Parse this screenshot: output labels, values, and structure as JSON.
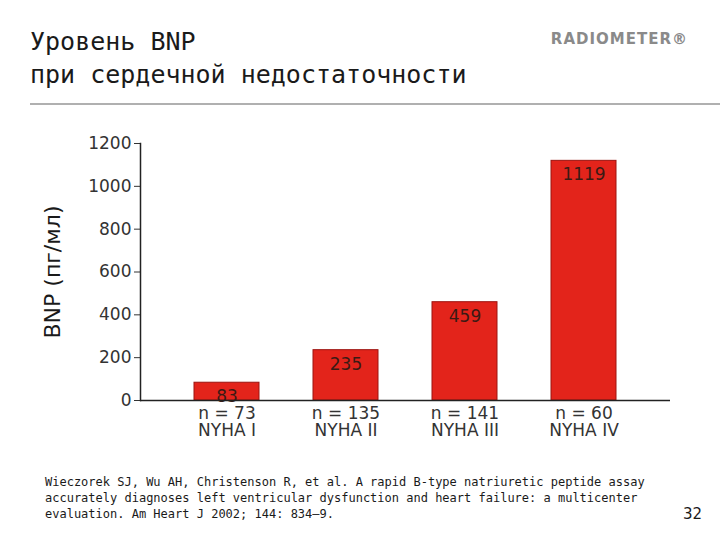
{
  "chart_data": {
    "type": "bar",
    "title": "Уровень BNP\nпри сердечной недостаточности",
    "y_label": "BNP (пг/мл)",
    "categories": [
      "n = 73\nNYHA I",
      "n = 135\nNYHA II",
      "n = 141\nNYHA III",
      "n = 60\nNYHA IV"
    ],
    "values": [
      83,
      235,
      459,
      1119
    ],
    "color": "#e3241b",
    "data_labels": true,
    "ylim": [
      0,
      1200
    ],
    "yticks": [
      0,
      200,
      400,
      600,
      800,
      1000,
      1200
    ],
    "grid": false,
    "caption": "Wieczorek SJ, Wu AH, Christenson R, et al. A rapid B-type natriuretic peptide assay accurately diagnoses left ventricular dysfunction and heart failure: a multicenter evaluation. Am Heart J 2002; 144: 834–9."
  },
  "logo": "RADIOMETER®",
  "page_number": 32
}
